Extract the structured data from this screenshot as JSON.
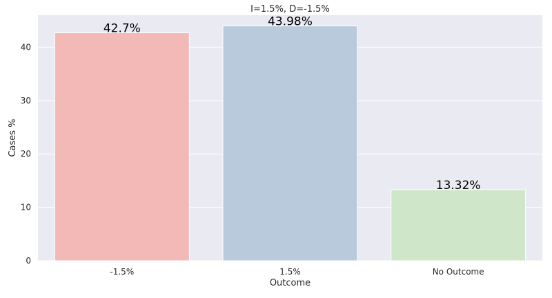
{
  "chart_data": {
    "type": "bar",
    "title": "I=1.5%, D=-1.5%",
    "xlabel": "Outcome",
    "ylabel": "Cases %",
    "categories": [
      "-1.5%",
      "1.5%",
      "No Outcome"
    ],
    "values": [
      42.7,
      43.98,
      13.32
    ],
    "data_labels": [
      "42.7%",
      "43.98%",
      "13.32%"
    ],
    "ylim": [
      0,
      46
    ],
    "yticks": [
      0,
      10,
      20,
      30,
      40
    ],
    "ytick_labels": [
      "0",
      "10",
      "20",
      "30",
      "40"
    ],
    "grid": true,
    "colors": [
      "#f2b9b7",
      "#b8cadc",
      "#cfe6c9"
    ],
    "background": "#eaeaf2",
    "grid_color": "#ffffff"
  }
}
